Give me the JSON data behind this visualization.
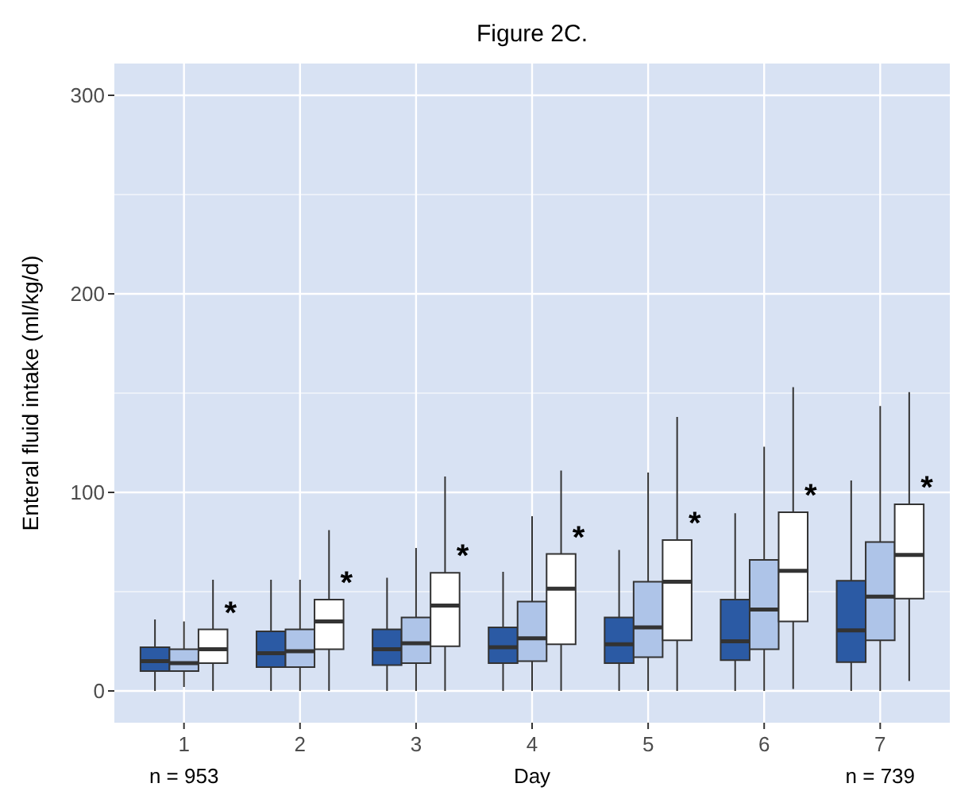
{
  "chart_data": {
    "type": "box",
    "title": "Figure 2C.",
    "xlabel": "Day",
    "ylabel": "Enteral fluid intake (ml/kg/d)",
    "categories": [
      "1",
      "2",
      "3",
      "4",
      "5",
      "6",
      "7"
    ],
    "ylim": [
      -16,
      316
    ],
    "yticks": [
      0,
      100,
      200,
      300
    ],
    "grid": true,
    "series": [
      {
        "color": "#2b5aa4",
        "boxes": [
          {
            "low": 0,
            "q1": 10,
            "median": 15,
            "q3": 22,
            "high": 36
          },
          {
            "low": 0,
            "q1": 12,
            "median": 19,
            "q3": 30,
            "high": 56
          },
          {
            "low": 0,
            "q1": 13,
            "median": 21,
            "q3": 31,
            "high": 57
          },
          {
            "low": 0,
            "q1": 14,
            "median": 22,
            "q3": 32,
            "high": 60
          },
          {
            "low": 0,
            "q1": 14,
            "median": 23.5,
            "q3": 37,
            "high": 71
          },
          {
            "low": 0,
            "q1": 15.5,
            "median": 25,
            "q3": 46,
            "high": 89.5
          },
          {
            "low": 0,
            "q1": 14.5,
            "median": 30.5,
            "q3": 55.5,
            "high": 106
          }
        ]
      },
      {
        "color": "#aec4e8",
        "boxes": [
          {
            "low": 2,
            "q1": 10,
            "median": 14,
            "q3": 21,
            "high": 35
          },
          {
            "low": 0,
            "q1": 12,
            "median": 20,
            "q3": 31,
            "high": 56
          },
          {
            "low": 0,
            "q1": 14,
            "median": 24,
            "q3": 37,
            "high": 72
          },
          {
            "low": 0,
            "q1": 15,
            "median": 26.5,
            "q3": 45,
            "high": 88
          },
          {
            "low": 0,
            "q1": 17,
            "median": 32,
            "q3": 55,
            "high": 110
          },
          {
            "low": 0,
            "q1": 21,
            "median": 41,
            "q3": 66,
            "high": 123
          },
          {
            "low": 0,
            "q1": 25.5,
            "median": 47.5,
            "q3": 75,
            "high": 143.5
          }
        ]
      },
      {
        "color": "#ffffff",
        "boxes": [
          {
            "low": 0,
            "q1": 14,
            "median": 21,
            "q3": 31,
            "high": 56
          },
          {
            "low": 0,
            "q1": 21,
            "median": 35,
            "q3": 46,
            "high": 81
          },
          {
            "low": 0,
            "q1": 22.5,
            "median": 43,
            "q3": 59.5,
            "high": 108
          },
          {
            "low": 0,
            "q1": 23.5,
            "median": 51.5,
            "q3": 69,
            "high": 111
          },
          {
            "low": 0,
            "q1": 25.5,
            "median": 55,
            "q3": 76,
            "high": 138
          },
          {
            "low": 1,
            "q1": 35,
            "median": 60.5,
            "q3": 90,
            "high": 153
          },
          {
            "low": 5,
            "q1": 46.5,
            "median": 68.5,
            "q3": 94,
            "high": 150.5
          }
        ]
      }
    ],
    "annotations": [
      "*",
      "*",
      "*",
      "*",
      "*",
      "*",
      "*",
      "n = 953",
      "n = 739"
    ]
  }
}
